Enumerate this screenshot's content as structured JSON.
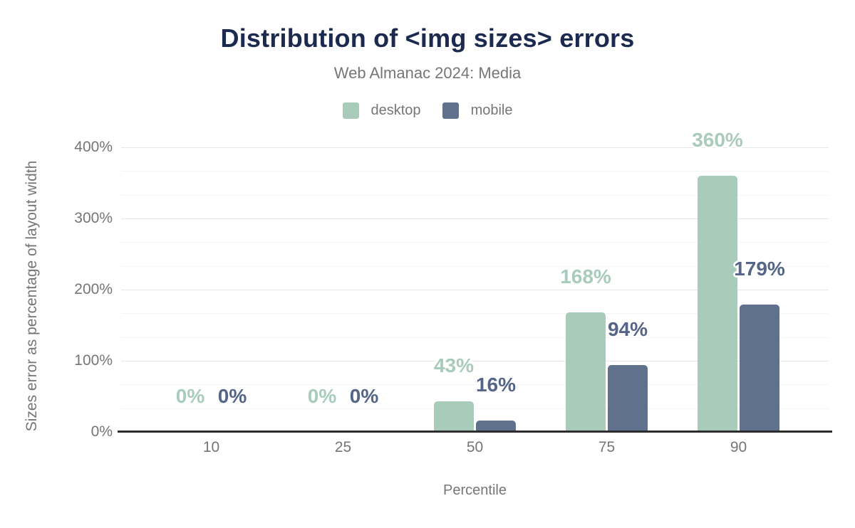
{
  "chart_data": {
    "type": "bar",
    "title": "Distribution of <img sizes> errors",
    "subtitle": "Web Almanac 2024: Media",
    "xlabel": "Percentile",
    "ylabel": "Sizes error as percentage of layout width",
    "categories": [
      "10",
      "25",
      "50",
      "75",
      "90"
    ],
    "series": [
      {
        "name": "desktop",
        "color": "#a8cbba",
        "label_color": "#a8cbba",
        "values": [
          0,
          0,
          43,
          168,
          360
        ]
      },
      {
        "name": "mobile",
        "color": "#5f718d",
        "label_color": "#546588",
        "values": [
          0,
          0,
          16,
          94,
          179
        ]
      }
    ],
    "value_labels": [
      [
        "0%",
        "0%",
        "43%",
        "168%",
        "360%"
      ],
      [
        "0%",
        "0%",
        "16%",
        "94%",
        "179%"
      ]
    ],
    "ylim": [
      0,
      400
    ],
    "yticks": [
      0,
      100,
      200,
      300,
      400
    ],
    "ytick_labels": [
      "0%",
      "100%",
      "200%",
      "300%",
      "400%"
    ],
    "grid": {
      "orientation": "horizontal",
      "minor_lines_between_major": 2
    },
    "legend_position": "top"
  },
  "palette": {
    "title_text": "#1b2a4e",
    "axis_text": "#757575",
    "subtitle_text": "#767676",
    "major_gridline": "#e6e6e6",
    "minor_gridline": "#f4f4f4",
    "axis_line": "#2d2d2d",
    "background": "#ffffff",
    "desktop": "#a8cbba",
    "mobile": "#5f718d"
  }
}
